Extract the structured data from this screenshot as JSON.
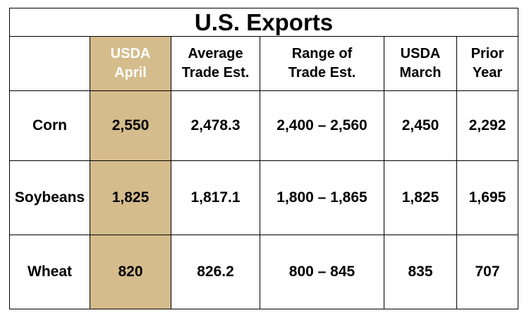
{
  "title": "U.S. Exports",
  "colors": {
    "highlight_column": "#d4bc8c",
    "highlight_header_text": "#ffffff"
  },
  "headers": [
    {
      "line1": "",
      "line2": ""
    },
    {
      "line1": "USDA",
      "line2": "April"
    },
    {
      "line1": "Average",
      "line2": "Trade Est."
    },
    {
      "line1": "Range of",
      "line2": "Trade Est."
    },
    {
      "line1": "USDA",
      "line2": "March"
    },
    {
      "line1": "Prior",
      "line2": "Year"
    }
  ],
  "rows": [
    {
      "commodity": "Corn",
      "usda_april": "2,550",
      "avg_trade_est": "2,478.3",
      "range_trade_est": "2,400 – 2,560",
      "usda_march": "2,450",
      "prior_year": "2,292"
    },
    {
      "commodity": "Soybeans",
      "usda_april": "1,825",
      "avg_trade_est": "1,817.1",
      "range_trade_est": "1,800 – 1,865",
      "usda_march": "1,825",
      "prior_year": "1,695"
    },
    {
      "commodity": "Wheat",
      "usda_april": "820",
      "avg_trade_est": "826.2",
      "range_trade_est": "800 – 845",
      "usda_march": "835",
      "prior_year": "707"
    }
  ]
}
